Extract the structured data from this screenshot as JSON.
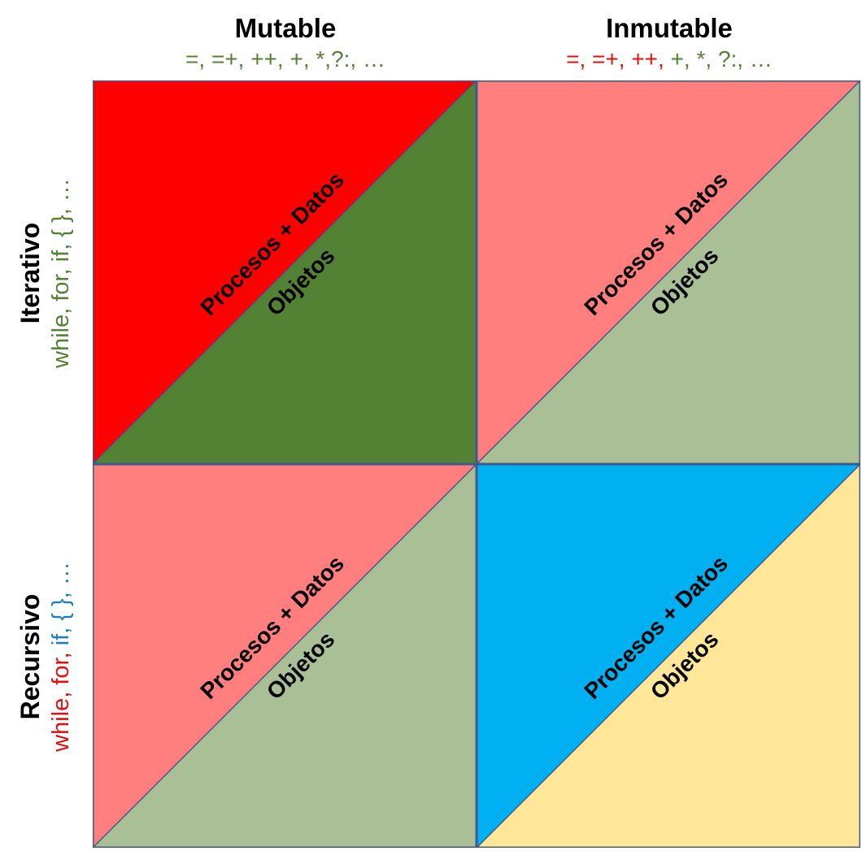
{
  "columns": [
    {
      "title": "Mutable",
      "ops": [
        {
          "t": "=, =+, ++, +, *,?:, …",
          "c": "green"
        }
      ]
    },
    {
      "title": "Inmutable",
      "ops": [
        {
          "t": "=, =+, ++,",
          "c": "red"
        },
        {
          "t": " +, *, ?:, …",
          "c": "green"
        }
      ]
    }
  ],
  "rows": [
    {
      "title": "Iterativo",
      "keywords": [
        {
          "t": "while, for, if, { }, …",
          "c": "green"
        }
      ]
    },
    {
      "title": "Recursivo",
      "keywords": [
        {
          "t": "while, for,",
          "c": "red"
        },
        {
          "t": " if, { }, …",
          "c": "blue"
        }
      ]
    }
  ],
  "cells": [
    {
      "name": "mutable-iterativo",
      "upper_color": "#ff0000",
      "lower_color": "#548235",
      "upper_label": "Procesos + Datos",
      "lower_label": "Objetos"
    },
    {
      "name": "inmutable-iterativo",
      "upper_color": "#ff7f7e",
      "lower_color": "#a9bf96",
      "upper_label": "Procesos + Datos",
      "lower_label": "Objetos"
    },
    {
      "name": "mutable-recursivo",
      "upper_color": "#ff7f7e",
      "lower_color": "#a9bf96",
      "upper_label": "Procesos + Datos",
      "lower_label": "Objetos"
    },
    {
      "name": "inmutable-recursivo",
      "upper_color": "#00b0f0",
      "lower_color": "#ffe699",
      "upper_label": "Procesos + Datos",
      "lower_label": "Objetos"
    }
  ],
  "colors": {
    "green": "#548235",
    "red": "#e01010",
    "blue": "#1e7fc0",
    "border": "#3f5a8a"
  }
}
